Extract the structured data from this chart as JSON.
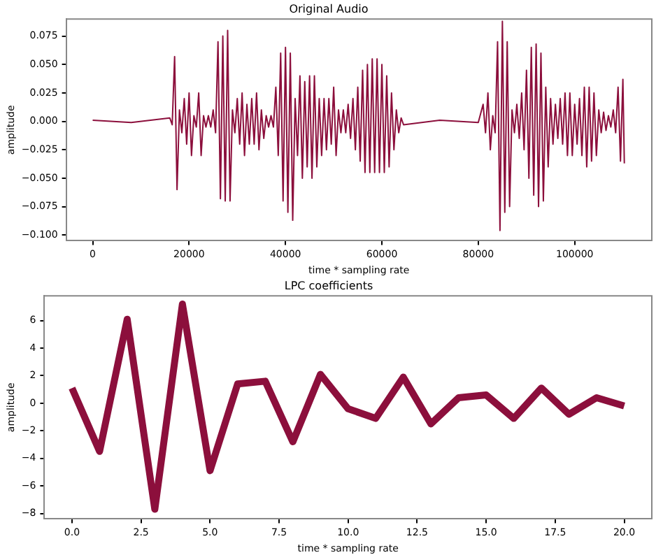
{
  "chart_data": [
    {
      "type": "line",
      "title": "Original Audio",
      "xlabel": "time * sampling rate",
      "ylabel": "amplitude",
      "grid": false,
      "legend": false,
      "marker": "none",
      "xlim": [
        -5500,
        116000
      ],
      "xticks": [
        0,
        20000,
        40000,
        60000,
        80000,
        100000
      ],
      "ylim": [
        -0.105,
        0.09
      ],
      "yticks": [
        {
          "value": -0.1,
          "label": "−0.100"
        },
        {
          "value": -0.075,
          "label": "−0.075"
        },
        {
          "value": -0.05,
          "label": "−0.050"
        },
        {
          "value": -0.025,
          "label": "−0.025"
        },
        {
          "value": 0,
          "label": "0.000"
        },
        {
          "value": 0.025,
          "label": "0.025"
        },
        {
          "value": 0.05,
          "label": "0.050"
        },
        {
          "value": 0.075,
          "label": "0.075"
        }
      ],
      "series": [
        {
          "color": "#8c0f3c",
          "x": [
            0,
            8000,
            16000,
            16500,
            17000,
            17500,
            18000,
            18500,
            19000,
            19500,
            20000,
            20500,
            21000,
            21500,
            22000,
            22500,
            23000,
            23500,
            24000,
            24500,
            25000,
            25500,
            26000,
            26500,
            27000,
            27500,
            28000,
            28500,
            29000,
            29500,
            30000,
            30500,
            31000,
            31500,
            32000,
            32500,
            33000,
            33500,
            34000,
            34500,
            35000,
            35500,
            36000,
            36500,
            37000,
            37500,
            38000,
            38500,
            39000,
            39500,
            40000,
            40500,
            41000,
            41500,
            42000,
            42500,
            43000,
            43500,
            44000,
            44500,
            45000,
            45500,
            46000,
            46500,
            47000,
            47500,
            48000,
            48500,
            49000,
            49500,
            50000,
            50500,
            51000,
            51500,
            52000,
            52500,
            53000,
            53500,
            54000,
            54500,
            55000,
            55500,
            56000,
            56500,
            57000,
            57500,
            58000,
            58500,
            59000,
            59500,
            60000,
            60500,
            61000,
            61500,
            62000,
            62500,
            63000,
            63500,
            64000,
            64500,
            72000,
            80000,
            81000,
            81500,
            82000,
            82500,
            83000,
            83500,
            84000,
            84500,
            85000,
            85500,
            86000,
            86500,
            87000,
            87500,
            88000,
            88500,
            89000,
            89500,
            90000,
            90500,
            91000,
            91500,
            92000,
            92500,
            93000,
            93500,
            94000,
            94500,
            95000,
            95500,
            96000,
            96500,
            97000,
            97500,
            98000,
            98500,
            99000,
            99500,
            100000,
            100500,
            101000,
            101500,
            102000,
            102500,
            103000,
            103500,
            104000,
            104500,
            105000,
            105500,
            106000,
            106500,
            107000,
            107500,
            108000,
            108500,
            109000,
            109500,
            110000,
            110300
          ],
          "values": [
            0.001,
            -0.001,
            0.003,
            -0.003,
            0.057,
            -0.06,
            0.01,
            -0.01,
            0.02,
            -0.02,
            0.025,
            -0.03,
            0.005,
            -0.005,
            0.025,
            -0.03,
            0.005,
            -0.005,
            0.005,
            -0.005,
            0.01,
            -0.01,
            0.07,
            -0.068,
            0.075,
            -0.07,
            0.08,
            -0.07,
            0.01,
            -0.01,
            0.02,
            -0.02,
            0.025,
            -0.03,
            0.015,
            -0.02,
            0.02,
            -0.02,
            0.025,
            -0.025,
            0.01,
            -0.015,
            0.005,
            -0.005,
            0.005,
            -0.005,
            0.03,
            -0.03,
            0.06,
            -0.07,
            0.065,
            -0.08,
            0.06,
            -0.087,
            0.02,
            -0.03,
            0.04,
            -0.05,
            0.035,
            -0.04,
            0.04,
            -0.05,
            0.04,
            -0.04,
            0.02,
            -0.03,
            0.02,
            -0.025,
            0.02,
            -0.02,
            0.03,
            -0.03,
            0.01,
            -0.01,
            0.01,
            -0.01,
            0.015,
            -0.015,
            0.02,
            -0.025,
            0.03,
            -0.035,
            0.045,
            -0.045,
            0.05,
            -0.045,
            0.055,
            -0.045,
            0.055,
            -0.045,
            0.05,
            -0.045,
            0.04,
            -0.04,
            0.025,
            -0.025,
            0.01,
            -0.01,
            0.003,
            -0.003,
            0.001,
            -0.001,
            0.015,
            -0.01,
            0.025,
            -0.025,
            0.005,
            -0.01,
            0.07,
            -0.096,
            0.088,
            -0.08,
            0.07,
            -0.075,
            0.01,
            -0.01,
            0.015,
            -0.015,
            0.025,
            -0.025,
            0.045,
            -0.05,
            0.065,
            -0.065,
            0.068,
            -0.075,
            0.06,
            -0.07,
            0.03,
            -0.04,
            0.02,
            -0.02,
            0.015,
            -0.015,
            0.02,
            -0.02,
            0.025,
            -0.03,
            0.025,
            -0.03,
            0.015,
            -0.02,
            0.02,
            -0.03,
            0.03,
            -0.04,
            0.03,
            -0.035,
            0.025,
            -0.03,
            0.01,
            -0.01,
            0.008,
            -0.008,
            0.005,
            -0.005,
            0.01,
            -0.01,
            0.03,
            -0.035,
            0.037,
            -0.037
          ]
        }
      ]
    },
    {
      "type": "line",
      "title": "LPC coefficients",
      "xlabel": "time * sampling rate",
      "ylabel": "amplitude",
      "grid": false,
      "legend": false,
      "marker": "none",
      "xlim": [
        -1,
        21
      ],
      "xticks": [
        {
          "value": 0,
          "label": "0.0"
        },
        {
          "value": 2.5,
          "label": "2.5"
        },
        {
          "value": 5,
          "label": "5.0"
        },
        {
          "value": 7.5,
          "label": "7.5"
        },
        {
          "value": 10,
          "label": "10.0"
        },
        {
          "value": 12.5,
          "label": "12.5"
        },
        {
          "value": 15,
          "label": "15.0"
        },
        {
          "value": 17.5,
          "label": "17.5"
        },
        {
          "value": 20,
          "label": "20.0"
        }
      ],
      "ylim": [
        -8.4,
        7.8
      ],
      "yticks": [
        {
          "value": -8,
          "label": "−8"
        },
        {
          "value": -6,
          "label": "−6"
        },
        {
          "value": -4,
          "label": "−4"
        },
        {
          "value": -2,
          "label": "−2"
        },
        0,
        2,
        4,
        6
      ],
      "series": [
        {
          "color": "#8c0f3c",
          "x": [
            0,
            1,
            2,
            3,
            4,
            5,
            6,
            7,
            8,
            9,
            10,
            11,
            12,
            13,
            14,
            15,
            16,
            17,
            18,
            19,
            20
          ],
          "values": [
            1.1,
            -3.5,
            6.1,
            -7.7,
            7.2,
            -4.9,
            1.4,
            1.6,
            -2.8,
            2.1,
            -0.4,
            -1.1,
            1.9,
            -1.5,
            0.4,
            0.6,
            -1.1,
            1.1,
            -0.8,
            0.4,
            -0.2
          ]
        }
      ]
    }
  ]
}
